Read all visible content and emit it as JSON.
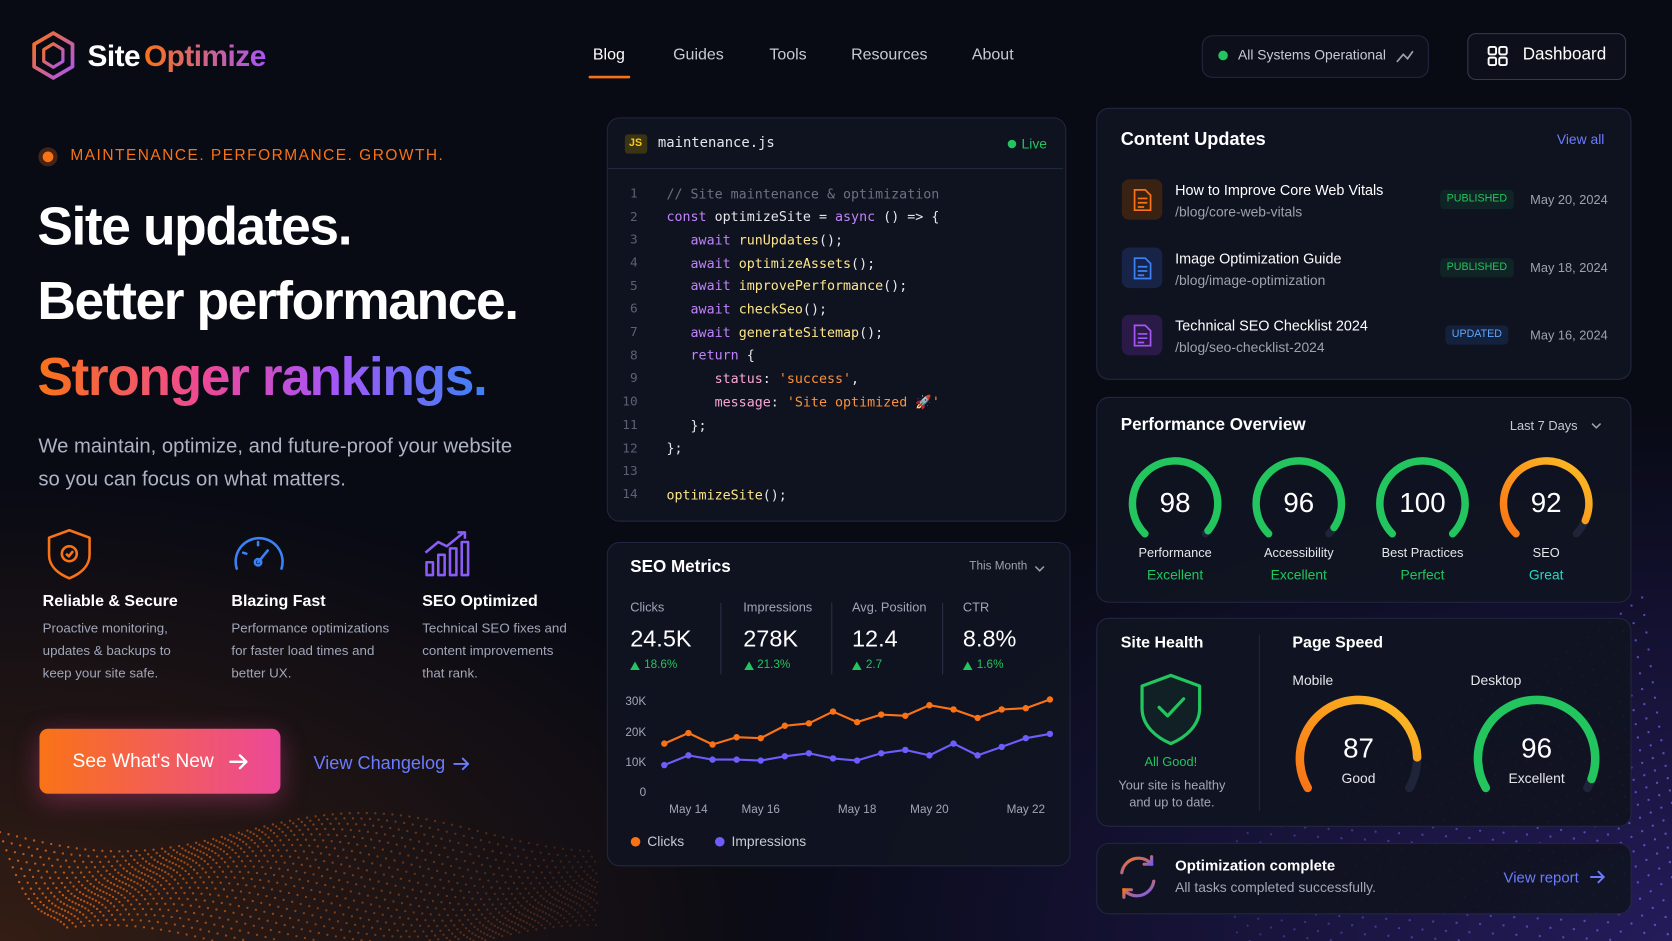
{
  "nav": {
    "brand_a": "Site",
    "brand_b": "Optimize",
    "links": [
      "Blog",
      "Guides",
      "Tools",
      "Resources",
      "About"
    ],
    "status": "All Systems Operational",
    "dashboard": "Dashboard"
  },
  "hero": {
    "eyebrow": "MAINTENANCE. PERFORMANCE. GROWTH.",
    "title_lines": [
      "Site updates.",
      "Better performance.",
      "Stronger rankings."
    ],
    "subtitle_lines": [
      "We maintain, optimize, and future-proof your website",
      "so you can focus on what matters."
    ],
    "features": [
      {
        "title": "Reliable & Secure",
        "lines": [
          "Proactive monitoring,",
          "updates & backups to",
          "keep your site safe."
        ]
      },
      {
        "title": "Blazing Fast",
        "lines": [
          "Performance optimizations",
          "for faster load times and",
          "better UX."
        ]
      },
      {
        "title": "SEO Optimized",
        "lines": [
          "Technical SEO fixes and",
          "content improvements",
          "that rank."
        ]
      }
    ],
    "cta": "See What's New",
    "secondary": "View Changelog"
  },
  "code": {
    "badge": "JS",
    "filename": "maintenance.js",
    "status": "Live",
    "lines": [
      {
        "number": 1,
        "text": "// Site maintenance & optimization"
      },
      {
        "number": 2,
        "text": "const optimizeSite = async () => {"
      },
      {
        "number": 3,
        "text": "   await runUpdates();"
      },
      {
        "number": 4,
        "text": "   await optimizeAssets();"
      },
      {
        "number": 5,
        "text": "   await improvePerformance();"
      },
      {
        "number": 6,
        "text": "   await checkSeo();"
      },
      {
        "number": 7,
        "text": "   await generateSitemap();"
      },
      {
        "number": 8,
        "text": "   return {"
      },
      {
        "number": 9,
        "text": "      status: 'success',"
      },
      {
        "number": 10,
        "text": "      message: 'Site optimized 🚀'"
      },
      {
        "number": 11,
        "text": "   };"
      },
      {
        "number": 12,
        "text": "};"
      },
      {
        "number": 13
      },
      {
        "number": 14,
        "text": "optimizeSite();"
      }
    ]
  },
  "seo_metrics": {
    "title": "SEO Metrics",
    "period": "This Month",
    "stats": [
      {
        "label": "Clicks",
        "value": "24.5K",
        "change": "18.6%"
      },
      {
        "label": "Impressions",
        "value": "278K",
        "change": "21.3%"
      },
      {
        "label": "Avg. Position",
        "value": "12.4",
        "change": "2.7"
      },
      {
        "label": "CTR",
        "value": "8.8%",
        "change": "1.6%"
      }
    ],
    "chart": {
      "type": "line",
      "categories": [
        null,
        "May 14",
        null,
        null,
        "May 16",
        null,
        null,
        null,
        "May 18",
        null,
        null,
        "May 20",
        null,
        null,
        null,
        "May 22",
        null
      ],
      "series": [
        {
          "name": "Clicks",
          "color": "#f97316",
          "values": [
            16600,
            20100,
            16300,
            18700,
            18400,
            22500,
            23300,
            27200,
            23700,
            26200,
            25800,
            29300,
            27900,
            25100,
            27900,
            28300,
            31200
          ]
        },
        {
          "name": "Impressions",
          "color": "#6d5dfc",
          "values": [
            9500,
            12700,
            11300,
            11300,
            11000,
            12400,
            13400,
            11700,
            11000,
            13400,
            14500,
            12700,
            16600,
            12700,
            15500,
            18400,
            19800
          ]
        }
      ],
      "ylim": [
        0,
        32000
      ],
      "yticks": [
        0,
        {
          "value": 10000,
          "label": "10K"
        },
        {
          "value": 20000,
          "label": "20K"
        },
        {
          "value": 30000,
          "label": "30K"
        }
      ]
    }
  },
  "content_updates": {
    "title": "Content Updates",
    "view_all": "View all",
    "items": [
      {
        "title": "How to Improve Core Web Vitals",
        "path": "/blog/core-web-vitals",
        "status": "PUBLISHED",
        "date": "May 20, 2024"
      },
      {
        "title": "Image Optimization Guide",
        "path": "/blog/image-optimization",
        "status": "PUBLISHED",
        "date": "May 18, 2024"
      },
      {
        "title": "Technical SEO Checklist 2024",
        "path": "/blog/seo-checklist-2024",
        "status": "UPDATED",
        "date": "May 16, 2024"
      }
    ]
  },
  "performance": {
    "title": "Performance Overview",
    "period": "Last 7 Days",
    "range": [
      0,
      100
    ],
    "scores": [
      {
        "value": 98,
        "label": "Performance",
        "rating": "Excellent",
        "color": "#22c55e"
      },
      {
        "value": 96,
        "label": "Accessibility",
        "rating": "Excellent",
        "color": "#22c55e"
      },
      {
        "value": 100,
        "label": "Best Practices",
        "rating": "Perfect",
        "color": "#22c55e"
      },
      {
        "value": 92,
        "label": "SEO",
        "rating": "Great",
        "color": "#f97316"
      }
    ]
  },
  "site_health": {
    "title": "Site Health",
    "status": "All Good!",
    "lines": [
      "Your site is healthy",
      "and up to date."
    ]
  },
  "page_speed": {
    "title": "Page Speed",
    "range": [
      0,
      100
    ],
    "scores": [
      {
        "device": "Mobile",
        "value": 87,
        "rating": "Good",
        "color": "#fbbf24"
      },
      {
        "device": "Desktop",
        "value": 96,
        "rating": "Excellent",
        "color": "#22c55e"
      }
    ]
  },
  "notice": {
    "title": "Optimization complete",
    "text": "All tasks completed successfully.",
    "link": "View report"
  }
}
